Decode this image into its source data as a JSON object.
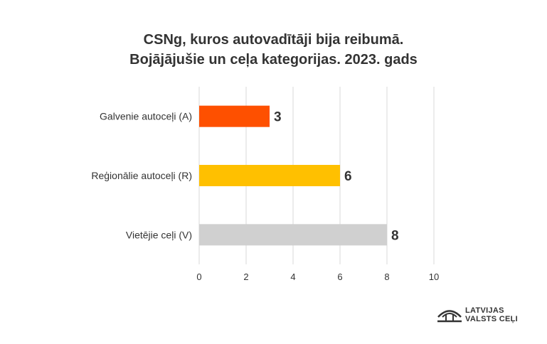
{
  "title": {
    "line1": "CSNg, kuros autovadītāji bija reibumā.",
    "line2": "Bojājājušie un ceļa kategorijas. 2023. gads"
  },
  "chart_data": {
    "type": "bar",
    "orientation": "horizontal",
    "categories": [
      "Galvenie autoceļi (A)",
      "Reģionālie autoceļi (R)",
      "Vietējie ceļi (V)"
    ],
    "values": [
      3,
      6,
      8
    ],
    "colors": [
      "#fe5000",
      "#ffc000",
      "#d0d0d0"
    ],
    "data_labels": [
      "3",
      "6",
      "8"
    ],
    "xlim": [
      0,
      10
    ],
    "x_ticks": [
      "0",
      "2",
      "4",
      "6",
      "8",
      "10"
    ],
    "grid": true,
    "legend": "none"
  },
  "logo": {
    "line1": "LATVIJAS",
    "line2": "VALSTS CEĻI"
  }
}
